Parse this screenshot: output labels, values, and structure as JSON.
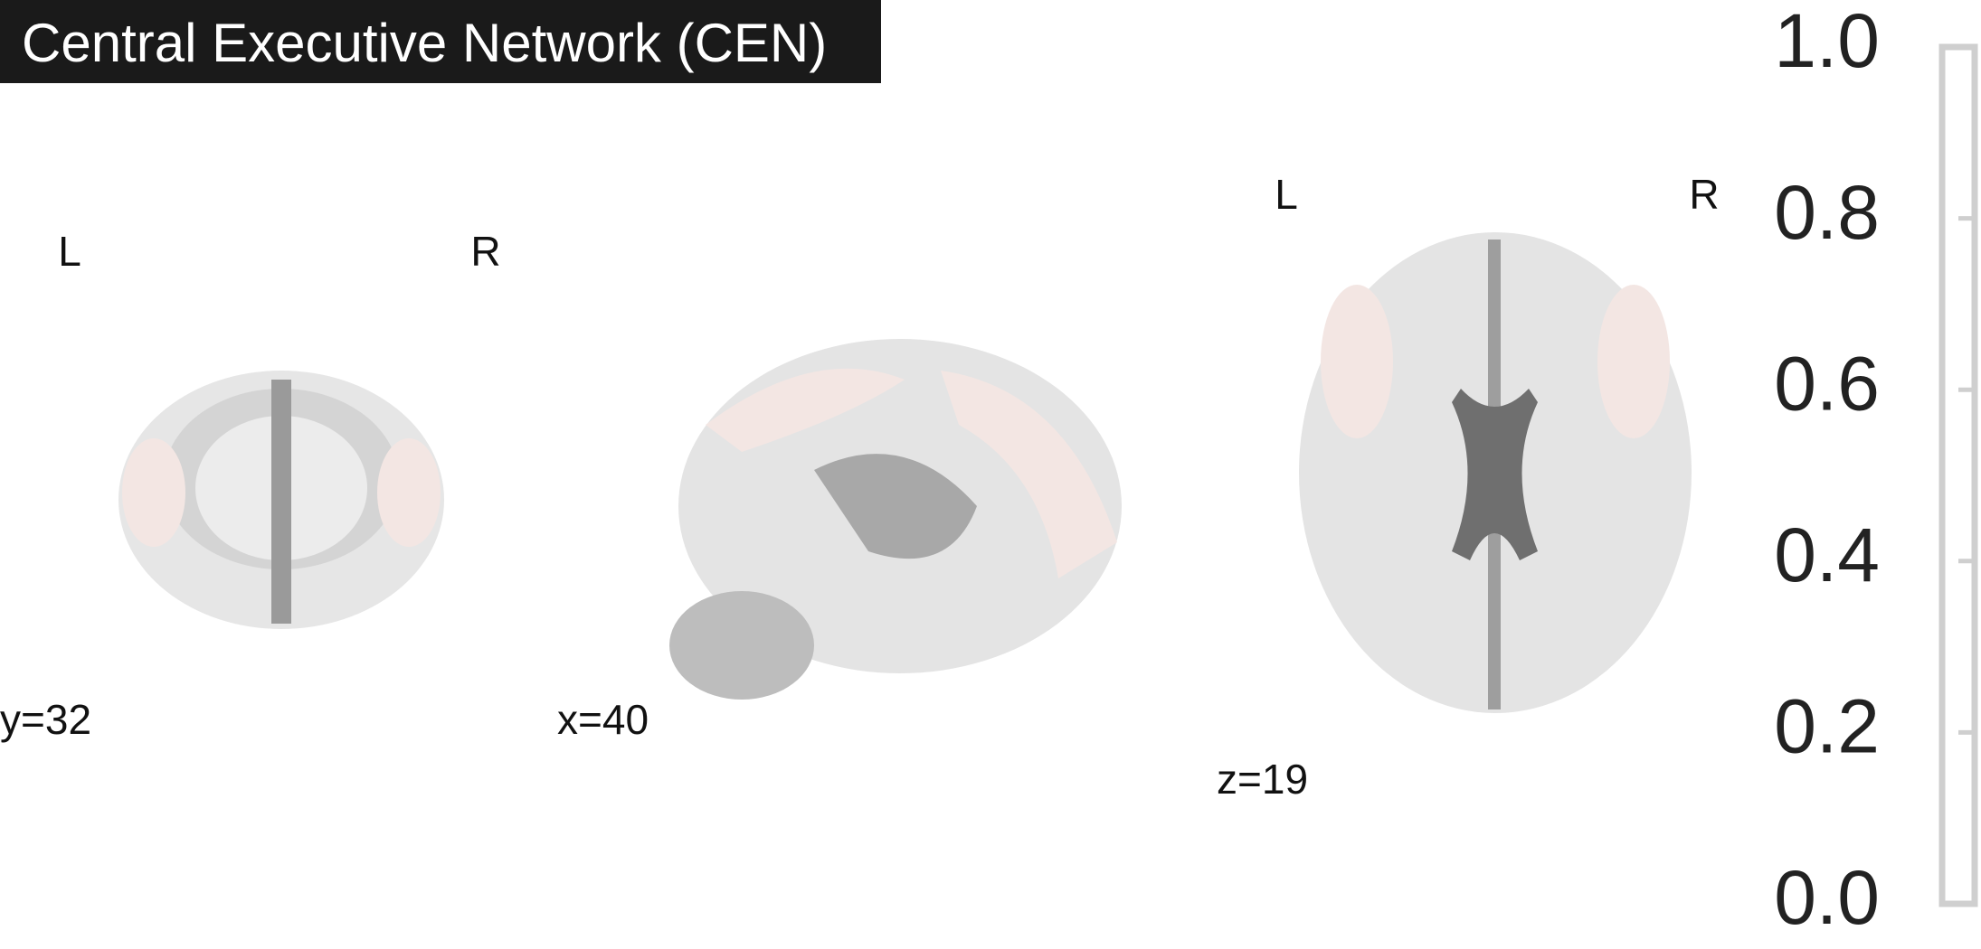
{
  "title": "Central Executive Network (CEN)",
  "slices": [
    {
      "coordinate": "y=32",
      "left": "L",
      "right": "R"
    },
    {
      "coordinate": "x=40"
    },
    {
      "coordinate": "z=19",
      "left": "L",
      "right": "R"
    }
  ],
  "colorbar": {
    "lim": [
      0,
      1
    ],
    "ticks": [
      {
        "value": 0,
        "label": "0.0"
      },
      {
        "value": 0.2,
        "label": "0.2"
      },
      {
        "value": 0.4,
        "label": "0.4"
      },
      {
        "value": 0.6,
        "label": "0.6"
      },
      {
        "value": 0.8,
        "label": "0.8"
      },
      {
        "value": 1,
        "label": "1.0"
      }
    ]
  }
}
